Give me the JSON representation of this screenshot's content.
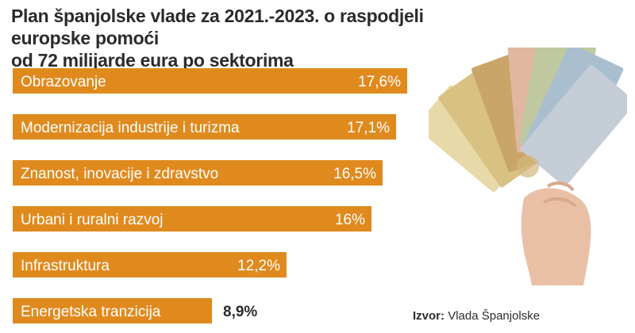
{
  "title_line1": "Plan španjolske vlade za 2021.-2023. o raspodjeli europske pomoći",
  "title_line2": "od 72 milijarde eura po sektorima",
  "source_label": "Izvor:",
  "source_text": "Vlada Španjolske",
  "colors": {
    "bar": "#e08a1e",
    "text": "#2b2b2b"
  },
  "image": "euro-banknotes-in-hand",
  "chart_data": {
    "type": "bar",
    "orientation": "horizontal",
    "title": "Plan španjolske vlade za 2021.-2023. o raspodjeli europske pomoći od 72 milijarde eura po sektorima",
    "categories": [
      "Obrazovanje",
      "Modernizacija industrije i turizma",
      "Znanost, inovacije i zdravstvo",
      "Urbani i ruralni razvoj",
      "Infrastruktura",
      "Energetska tranzicija"
    ],
    "values": [
      17.6,
      17.1,
      16.5,
      16,
      12.2,
      8.9
    ],
    "value_labels": [
      "17,6%",
      "17,1%",
      "16,5%",
      "16%",
      "12,2%",
      "8,9%"
    ],
    "unit": "%",
    "xlim": [
      0,
      17.6
    ],
    "grid": false,
    "legend": "none"
  }
}
